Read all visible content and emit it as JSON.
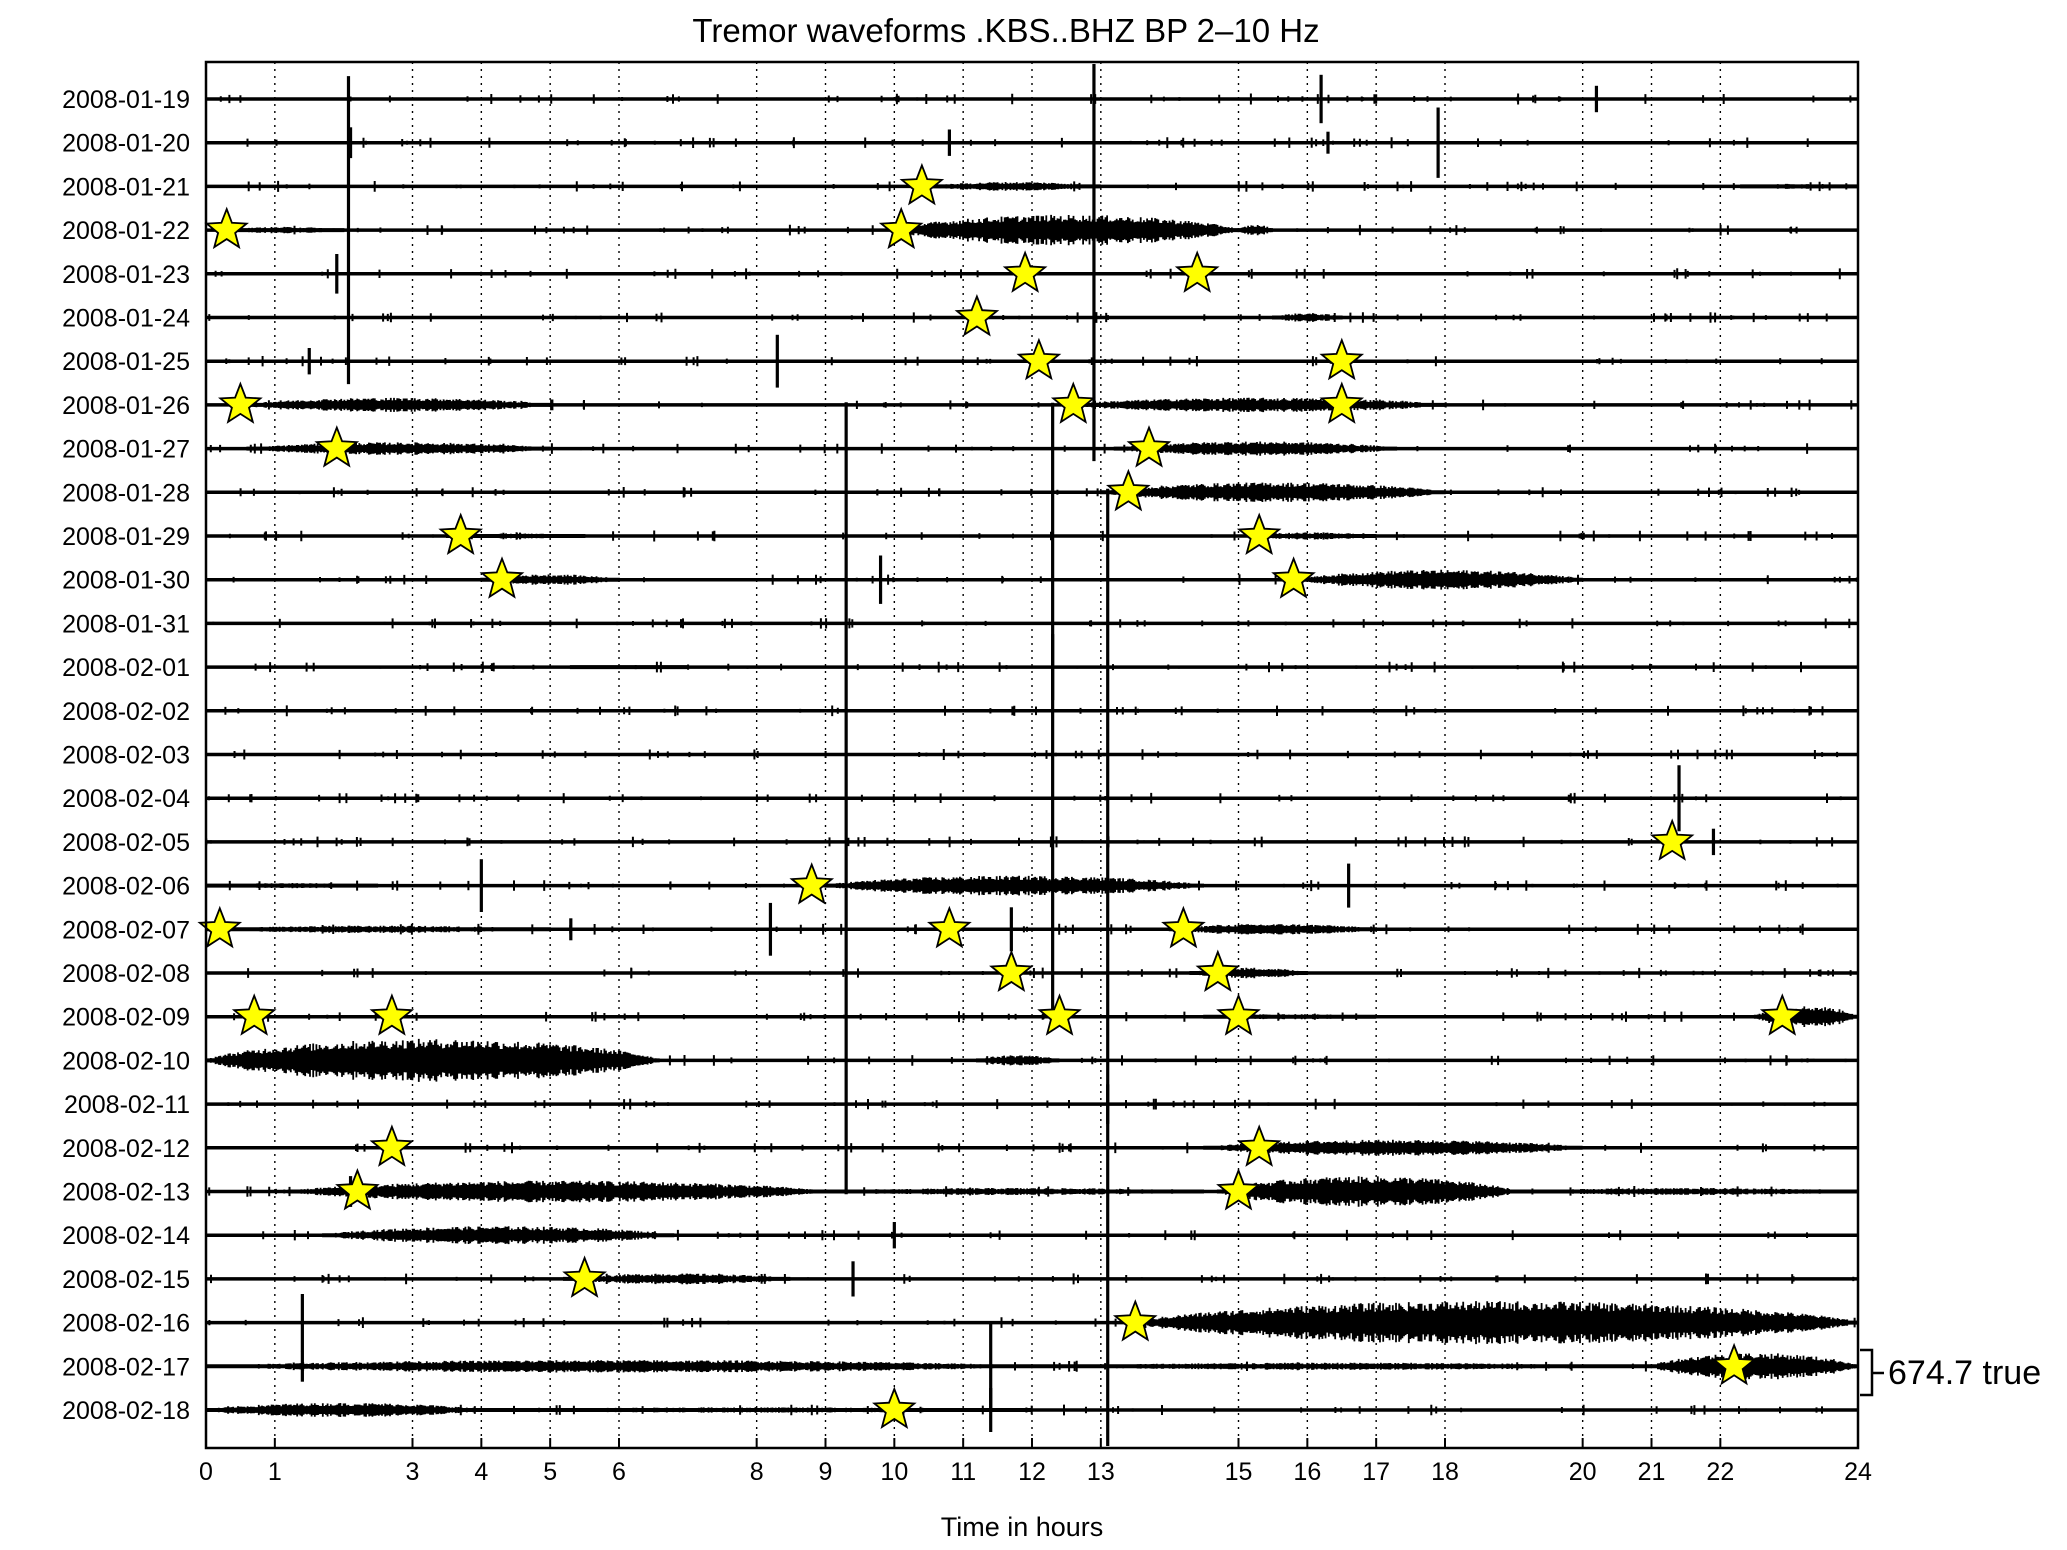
{
  "chart_data": {
    "type": "seismogram",
    "title": "Tremor waveforms .KBS..BHZ BP 2–10 Hz",
    "xlabel": "Time in hours",
    "xlim": [
      0,
      24
    ],
    "x_tick_labels": [
      "0",
      "1",
      "3",
      "4",
      "5",
      "6",
      "8",
      "9",
      "10",
      "11",
      "12",
      "13",
      "15",
      "16",
      "17",
      "18",
      "20",
      "21",
      "22",
      "24"
    ],
    "days": [
      "2008-01-19",
      "2008-01-20",
      "2008-01-21",
      "2008-01-22",
      "2008-01-23",
      "2008-01-24",
      "2008-01-25",
      "2008-01-26",
      "2008-01-27",
      "2008-01-28",
      "2008-01-29",
      "2008-01-30",
      "2008-01-31",
      "2008-02-01",
      "2008-02-02",
      "2008-02-03",
      "2008-02-04",
      "2008-02-05",
      "2008-02-06",
      "2008-02-07",
      "2008-02-08",
      "2008-02-09",
      "2008-02-10",
      "2008-02-11",
      "2008-02-12",
      "2008-02-13",
      "2008-02-14",
      "2008-02-15",
      "2008-02-16",
      "2008-02-17",
      "2008-02-18"
    ],
    "scale_bar_label": "674.7 true",
    "scale_bar_day": "2008-02-17",
    "star_color": "#ffff00",
    "star_stroke": "#000000",
    "trace_color": "#000000",
    "tremor_bursts": [
      {
        "day": "2008-01-21",
        "start": 10.5,
        "end": 13.0,
        "amp": 0.25
      },
      {
        "day": "2008-01-21",
        "start": 22.3,
        "end": 24.0,
        "amp": 0.15
      },
      {
        "day": "2008-01-22",
        "start": 0.3,
        "end": 2.0,
        "amp": 0.18
      },
      {
        "day": "2008-01-22",
        "start": 10.0,
        "end": 15.0,
        "amp": 0.85
      },
      {
        "day": "2008-01-22",
        "start": 15.0,
        "end": 15.5,
        "amp": 0.3
      },
      {
        "day": "2008-01-24",
        "start": 15.5,
        "end": 16.5,
        "amp": 0.25
      },
      {
        "day": "2008-01-26",
        "start": 0.5,
        "end": 5.0,
        "amp": 0.4
      },
      {
        "day": "2008-01-26",
        "start": 12.5,
        "end": 18.0,
        "amp": 0.4
      },
      {
        "day": "2008-01-27",
        "start": 0.6,
        "end": 5.0,
        "amp": 0.35
      },
      {
        "day": "2008-01-27",
        "start": 13.2,
        "end": 17.3,
        "amp": 0.4
      },
      {
        "day": "2008-01-28",
        "start": 13.0,
        "end": 18.0,
        "amp": 0.55
      },
      {
        "day": "2008-01-29",
        "start": 3.5,
        "end": 5.5,
        "amp": 0.15
      },
      {
        "day": "2008-01-29",
        "start": 15.2,
        "end": 17.0,
        "amp": 0.2
      },
      {
        "day": "2008-01-30",
        "start": 4.0,
        "end": 6.0,
        "amp": 0.3
      },
      {
        "day": "2008-01-30",
        "start": 15.9,
        "end": 20.0,
        "amp": 0.55
      },
      {
        "day": "2008-02-01",
        "start": 5.3,
        "end": 7.0,
        "amp": 0.1
      },
      {
        "day": "2008-02-06",
        "start": 9.0,
        "end": 14.5,
        "amp": 0.55
      },
      {
        "day": "2008-02-06",
        "start": 0.0,
        "end": 2.5,
        "amp": 0.15
      },
      {
        "day": "2008-02-07",
        "start": 0.0,
        "end": 5.0,
        "amp": 0.2
      },
      {
        "day": "2008-02-07",
        "start": 14.0,
        "end": 17.0,
        "amp": 0.3
      },
      {
        "day": "2008-02-08",
        "start": 14.3,
        "end": 16.0,
        "amp": 0.3
      },
      {
        "day": "2008-02-09",
        "start": 22.5,
        "end": 24.0,
        "amp": 0.6
      },
      {
        "day": "2008-02-09",
        "start": 14.5,
        "end": 17.0,
        "amp": 0.15
      },
      {
        "day": "2008-02-10",
        "start": 0.0,
        "end": 6.6,
        "amp": 1.2
      },
      {
        "day": "2008-02-10",
        "start": 11.2,
        "end": 12.4,
        "amp": 0.3
      },
      {
        "day": "2008-02-12",
        "start": 14.5,
        "end": 20.0,
        "amp": 0.45
      },
      {
        "day": "2008-02-13",
        "start": 1.2,
        "end": 9.0,
        "amp": 0.6
      },
      {
        "day": "2008-02-13",
        "start": 9.0,
        "end": 14.5,
        "amp": 0.2
      },
      {
        "day": "2008-02-13",
        "start": 14.7,
        "end": 19.0,
        "amp": 0.85
      },
      {
        "day": "2008-02-13",
        "start": 19.0,
        "end": 24.0,
        "amp": 0.2
      },
      {
        "day": "2008-02-14",
        "start": 1.7,
        "end": 6.8,
        "amp": 0.5
      },
      {
        "day": "2008-02-15",
        "start": 5.2,
        "end": 8.5,
        "amp": 0.3
      },
      {
        "day": "2008-02-16",
        "start": 13.5,
        "end": 24.0,
        "amp": 1.2
      },
      {
        "day": "2008-02-17",
        "start": 0.0,
        "end": 12.0,
        "amp": 0.35
      },
      {
        "day": "2008-02-17",
        "start": 12.0,
        "end": 21.0,
        "amp": 0.2
      },
      {
        "day": "2008-02-17",
        "start": 21.0,
        "end": 24.0,
        "amp": 0.75
      },
      {
        "day": "2008-02-18",
        "start": 0.0,
        "end": 4.0,
        "amp": 0.4
      },
      {
        "day": "2008-02-18",
        "start": 4.0,
        "end": 12.0,
        "amp": 0.15
      }
    ],
    "spikes": [
      {
        "day": "2008-01-19",
        "hour": 16.2,
        "amp": 1.1
      },
      {
        "day": "2008-01-19",
        "hour": 20.2,
        "amp": 0.6
      },
      {
        "day": "2008-01-20",
        "hour": 2.1,
        "amp": 0.7
      },
      {
        "day": "2008-01-20",
        "hour": 10.8,
        "amp": 0.6
      },
      {
        "day": "2008-01-20",
        "hour": 16.3,
        "amp": 0.5
      },
      {
        "day": "2008-01-20",
        "hour": 17.9,
        "amp": 1.6
      },
      {
        "day": "2008-01-22",
        "hour": 2.07,
        "amp": 7.0
      },
      {
        "day": "2008-01-23",
        "hour": 1.9,
        "amp": 0.9
      },
      {
        "day": "2008-01-22",
        "hour": 12.9,
        "amp": 10.5
      },
      {
        "day": "2008-01-25",
        "hour": 1.5,
        "amp": 0.6
      },
      {
        "day": "2008-01-25",
        "hour": 8.3,
        "amp": 1.2
      },
      {
        "day": "2008-01-30",
        "hour": 9.8,
        "amp": 1.1
      },
      {
        "day": "2008-02-01",
        "hour": 12.3,
        "amp": 1.5
      },
      {
        "day": "2008-02-02",
        "hour": 12.3,
        "amp": 14.0
      },
      {
        "day": "2008-02-04",
        "hour": 21.4,
        "amp": 1.5
      },
      {
        "day": "2008-02-05",
        "hour": 21.9,
        "amp": 0.6
      },
      {
        "day": "2008-02-06",
        "hour": 4.0,
        "amp": 1.2
      },
      {
        "day": "2008-02-06",
        "hour": 16.6,
        "amp": 1.0
      },
      {
        "day": "2008-02-04",
        "hour": 9.3,
        "amp": 18.0
      },
      {
        "day": "2008-02-07",
        "hour": 8.2,
        "amp": 1.2
      },
      {
        "day": "2008-02-07",
        "hour": 11.7,
        "amp": 1.0
      },
      {
        "day": "2008-02-07",
        "hour": 5.3,
        "amp": 0.5
      },
      {
        "day": "2008-02-11",
        "hour": 13.1,
        "amp": 0.9
      },
      {
        "day": "2008-02-09",
        "hour": 13.1,
        "amp": 24.0
      },
      {
        "day": "2008-02-16",
        "hour": 1.4,
        "amp": 1.3
      },
      {
        "day": "2008-02-17",
        "hour": 1.4,
        "amp": 0.7
      },
      {
        "day": "2008-02-17",
        "hour": 11.4,
        "amp": 2.0
      },
      {
        "day": "2008-02-18",
        "hour": 11.4,
        "amp": 1.0
      },
      {
        "day": "2008-02-15",
        "hour": 9.4,
        "amp": 0.8
      },
      {
        "day": "2008-02-14",
        "hour": 10.0,
        "amp": 0.6
      },
      {
        "day": "2008-02-13",
        "hour": 2.1,
        "amp": 0.7
      }
    ],
    "stars": [
      {
        "day": "2008-01-21",
        "hour": 10.4
      },
      {
        "day": "2008-01-22",
        "hour": 0.3
      },
      {
        "day": "2008-01-22",
        "hour": 10.1
      },
      {
        "day": "2008-01-23",
        "hour": 11.9
      },
      {
        "day": "2008-01-23",
        "hour": 14.4
      },
      {
        "day": "2008-01-24",
        "hour": 11.2
      },
      {
        "day": "2008-01-25",
        "hour": 12.1
      },
      {
        "day": "2008-01-25",
        "hour": 16.5
      },
      {
        "day": "2008-01-26",
        "hour": 0.5
      },
      {
        "day": "2008-01-26",
        "hour": 12.6
      },
      {
        "day": "2008-01-26",
        "hour": 16.5
      },
      {
        "day": "2008-01-27",
        "hour": 1.9
      },
      {
        "day": "2008-01-27",
        "hour": 13.7
      },
      {
        "day": "2008-01-28",
        "hour": 13.4
      },
      {
        "day": "2008-01-29",
        "hour": 3.7
      },
      {
        "day": "2008-01-29",
        "hour": 15.3
      },
      {
        "day": "2008-01-30",
        "hour": 4.3
      },
      {
        "day": "2008-01-30",
        "hour": 15.8
      },
      {
        "day": "2008-02-05",
        "hour": 21.3
      },
      {
        "day": "2008-02-06",
        "hour": 8.8
      },
      {
        "day": "2008-02-07",
        "hour": 0.2
      },
      {
        "day": "2008-02-07",
        "hour": 10.8
      },
      {
        "day": "2008-02-07",
        "hour": 14.2
      },
      {
        "day": "2008-02-08",
        "hour": 11.7
      },
      {
        "day": "2008-02-08",
        "hour": 14.7
      },
      {
        "day": "2008-02-09",
        "hour": 0.7
      },
      {
        "day": "2008-02-09",
        "hour": 2.7
      },
      {
        "day": "2008-02-09",
        "hour": 12.4
      },
      {
        "day": "2008-02-09",
        "hour": 15.0
      },
      {
        "day": "2008-02-09",
        "hour": 22.9
      },
      {
        "day": "2008-02-12",
        "hour": 2.7
      },
      {
        "day": "2008-02-12",
        "hour": 15.3
      },
      {
        "day": "2008-02-13",
        "hour": 2.2
      },
      {
        "day": "2008-02-13",
        "hour": 15.0
      },
      {
        "day": "2008-02-15",
        "hour": 5.5
      },
      {
        "day": "2008-02-16",
        "hour": 13.5
      },
      {
        "day": "2008-02-17",
        "hour": 22.2
      },
      {
        "day": "2008-02-18",
        "hour": 10.0
      }
    ]
  }
}
